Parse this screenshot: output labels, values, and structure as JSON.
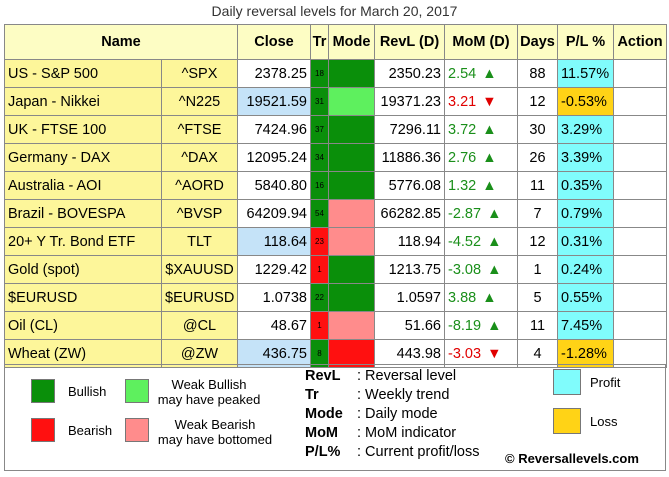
{
  "title": "Daily reversal levels for March 20, 2017",
  "headers": {
    "name": "Name",
    "close": "Close",
    "tr": "Tr",
    "mode": "Mode",
    "revl": "RevL (D)",
    "mom": "MoM (D)",
    "days": "Days",
    "pl": "P/L %",
    "action": "Action"
  },
  "rows": [
    {
      "name": "US - S&P 500",
      "ticker": "^SPX",
      "close": "2378.25",
      "close_hl": false,
      "tr": "18",
      "tr_color": "bull",
      "mode_color": "bull",
      "revl": "2350.23",
      "mom": "2.54",
      "mom_dir": "up",
      "mom_arrow": "▲",
      "days": "88",
      "pl": "11.57%",
      "pl_color": "profit",
      "action": ""
    },
    {
      "name": "Japan - Nikkei",
      "ticker": "^N225",
      "close": "19521.59",
      "close_hl": true,
      "tr": "31",
      "tr_color": "bull",
      "mode_color": "wbull",
      "revl": "19371.23",
      "mom": "3.21",
      "mom_dir": "down",
      "mom_arrow": "▼",
      "days": "12",
      "pl": "-0.53%",
      "pl_color": "loss",
      "action": ""
    },
    {
      "name": "UK - FTSE 100",
      "ticker": "^FTSE",
      "close": "7424.96",
      "close_hl": false,
      "tr": "37",
      "tr_color": "bull",
      "mode_color": "bull",
      "revl": "7296.11",
      "mom": "3.72",
      "mom_dir": "up",
      "mom_arrow": "▲",
      "days": "30",
      "pl": "3.29%",
      "pl_color": "profit",
      "action": ""
    },
    {
      "name": "Germany - DAX",
      "ticker": "^DAX",
      "close": "12095.24",
      "close_hl": false,
      "tr": "34",
      "tr_color": "bull",
      "mode_color": "bull",
      "revl": "11886.36",
      "mom": "2.76",
      "mom_dir": "up",
      "mom_arrow": "▲",
      "days": "26",
      "pl": "3.39%",
      "pl_color": "profit",
      "action": ""
    },
    {
      "name": "Australia - AOI",
      "ticker": "^AORD",
      "close": "5840.80",
      "close_hl": false,
      "tr": "16",
      "tr_color": "bull",
      "mode_color": "bull",
      "revl": "5776.08",
      "mom": "1.32",
      "mom_dir": "up",
      "mom_arrow": "▲",
      "days": "11",
      "pl": "0.35%",
      "pl_color": "profit",
      "action": ""
    },
    {
      "name": "Brazil - BOVESPA",
      "ticker": "^BVSP",
      "close": "64209.94",
      "close_hl": false,
      "tr": "54",
      "tr_color": "bull",
      "mode_color": "wbear",
      "revl": "66282.85",
      "mom": "-2.87",
      "mom_dir": "up",
      "mom_arrow": "▲",
      "days": "7",
      "pl": "0.79%",
      "pl_color": "profit",
      "action": ""
    },
    {
      "name": "20+ Y Tr. Bond ETF",
      "ticker": "TLT",
      "close": "118.64",
      "close_hl": true,
      "tr": "23",
      "tr_color": "bear",
      "mode_color": "wbear",
      "revl": "118.94",
      "mom": "-4.52",
      "mom_dir": "up",
      "mom_arrow": "▲",
      "days": "12",
      "pl": "0.31%",
      "pl_color": "profit",
      "action": ""
    },
    {
      "name": "Gold (spot)",
      "ticker": "$XAUUSD",
      "close": "1229.42",
      "close_hl": false,
      "tr": "1",
      "tr_color": "bear",
      "mode_color": "bull",
      "revl": "1213.75",
      "mom": "-3.08",
      "mom_dir": "up",
      "mom_arrow": "▲",
      "days": "1",
      "pl": "0.24%",
      "pl_color": "profit",
      "action": ""
    },
    {
      "name": "$EURUSD",
      "ticker": "$EURUSD",
      "close": "1.0738",
      "close_hl": false,
      "tr": "22",
      "tr_color": "bull",
      "mode_color": "bull",
      "revl": "1.0597",
      "mom": "3.88",
      "mom_dir": "up",
      "mom_arrow": "▲",
      "days": "5",
      "pl": "0.55%",
      "pl_color": "profit",
      "action": ""
    },
    {
      "name": "Oil (CL)",
      "ticker": "@CL",
      "close": "48.67",
      "close_hl": false,
      "tr": "1",
      "tr_color": "bear",
      "mode_color": "wbear",
      "revl": "51.66",
      "mom": "-8.19",
      "mom_dir": "up",
      "mom_arrow": "▲",
      "days": "11",
      "pl": "7.45%",
      "pl_color": "profit",
      "action": ""
    },
    {
      "name": "Wheat (ZW)",
      "ticker": "@ZW",
      "close": "436.75",
      "close_hl": true,
      "tr": "8",
      "tr_color": "bull",
      "mode_color": "bear",
      "revl": "443.98",
      "mom": "-3.03",
      "mom_dir": "down",
      "mom_arrow": "▼",
      "days": "4",
      "pl": "-1.28%",
      "pl_color": "loss",
      "action": ""
    }
  ],
  "legend": {
    "bullish": "Bullish",
    "weak_bullish_1": "Weak Bullish",
    "weak_bullish_2": "may have peaked",
    "bearish": "Bearish",
    "weak_bearish_1": "Weak Bearish",
    "weak_bearish_2": "may have bottomed",
    "keys": [
      {
        "k": "RevL",
        "v": ": Reversal level"
      },
      {
        "k": "Tr",
        "v": ": Weekly trend"
      },
      {
        "k": "Mode",
        "v": ": Daily mode"
      },
      {
        "k": "MoM",
        "v": ": MoM indicator"
      },
      {
        "k": "P/L%",
        "v": ": Current profit/loss"
      }
    ],
    "profit": "Profit",
    "loss": "Loss",
    "copyright": "© Reversallevels.com"
  },
  "colors": {
    "bull": "#0a8f0a",
    "wbull": "#5ef05e",
    "bear": "#ff1010",
    "wbear": "#ff8c8c",
    "profit": "#80fcfc",
    "loss": "#ffd316",
    "header_bg": "#fdfdc4",
    "name_bg": "#fdf69a",
    "close_highlight": "#c5e3f8",
    "up_arrow": "#1a8f1a",
    "down_arrow": "#e00000"
  }
}
